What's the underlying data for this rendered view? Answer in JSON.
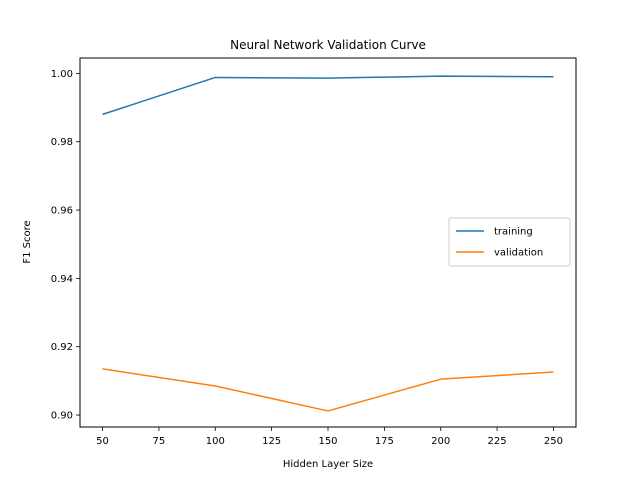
{
  "chart_data": {
    "type": "line",
    "title": "Neural Network Validation Curve",
    "xlabel": "Hidden Layer Size",
    "ylabel": "F1 Score",
    "x": [
      50,
      100,
      150,
      200,
      250
    ],
    "xlim": [
      40,
      260
    ],
    "ylim": [
      0.8965,
      1.0045
    ],
    "xticks": [
      50,
      75,
      100,
      125,
      150,
      175,
      200,
      225,
      250
    ],
    "yticks": [
      0.9,
      0.92,
      0.94,
      0.96,
      0.98,
      1.0
    ],
    "ytick_labels": [
      "0.90",
      "0.92",
      "0.94",
      "0.96",
      "0.98",
      "1.00"
    ],
    "grid": false,
    "legend_position": "center-right",
    "series": [
      {
        "name": "training",
        "color": "#1f77b4",
        "values": [
          0.988,
          0.9988,
          0.9986,
          0.9992,
          0.999
        ]
      },
      {
        "name": "validation",
        "color": "#ff7f0e",
        "values": [
          0.9135,
          0.9085,
          0.9012,
          0.9105,
          0.9126
        ]
      }
    ]
  }
}
